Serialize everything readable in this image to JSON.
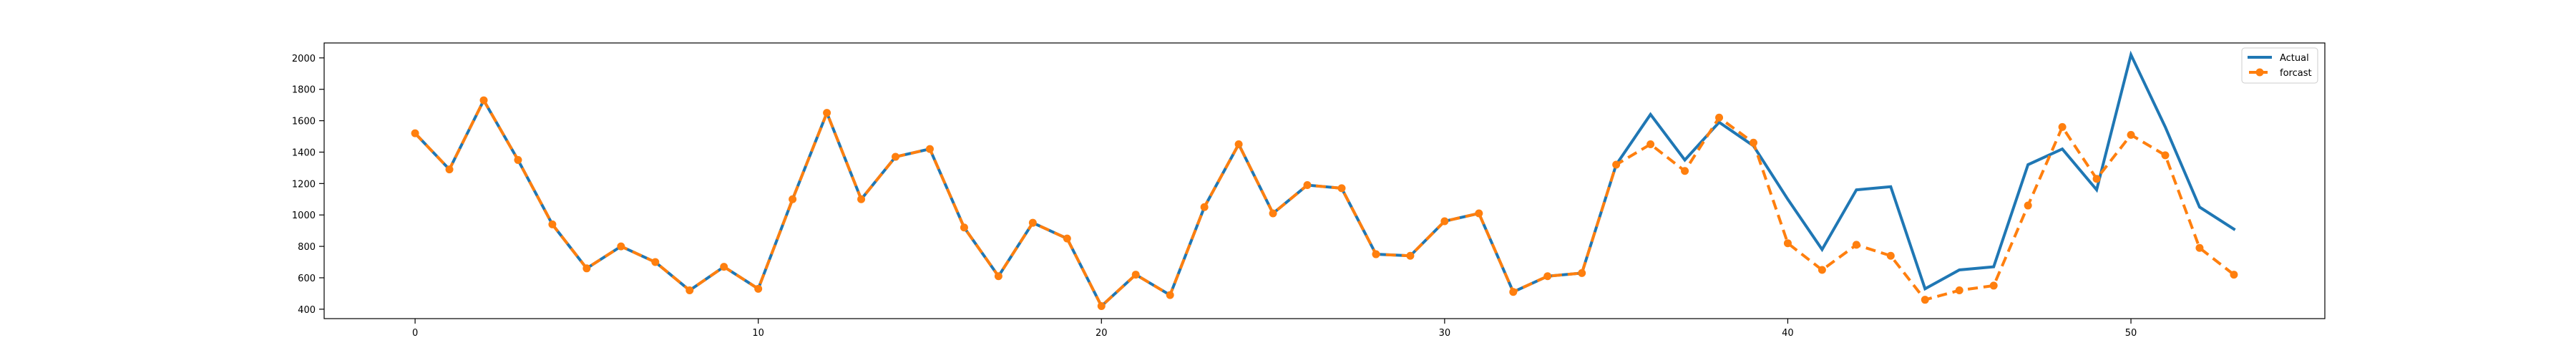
{
  "chart_data": {
    "type": "line",
    "title": "",
    "xlabel": "",
    "ylabel": "",
    "xlim": [
      -2.65,
      55.65
    ],
    "ylim": [
      340,
      2095
    ],
    "x_ticks": [
      0,
      10,
      20,
      30,
      40,
      50
    ],
    "y_ticks": [
      400,
      600,
      800,
      1000,
      1200,
      1400,
      1600,
      1800,
      2000
    ],
    "x_tick_labels": [
      "0",
      "10",
      "20",
      "30",
      "40",
      "50"
    ],
    "y_tick_labels": [
      "400",
      "600",
      "800",
      "1000",
      "1200",
      "1400",
      "1600",
      "1800",
      "2000"
    ],
    "grid": false,
    "legend_position": "top-right",
    "series": [
      {
        "name": "Actual",
        "color": "#1f77b4",
        "style": "solid",
        "marker": "none",
        "x": [
          0,
          1,
          2,
          3,
          4,
          5,
          6,
          7,
          8,
          9,
          10,
          11,
          12,
          13,
          14,
          15,
          16,
          17,
          18,
          19,
          20,
          21,
          22,
          23,
          24,
          25,
          26,
          27,
          28,
          29,
          30,
          31,
          32,
          33,
          34,
          35,
          36,
          37,
          38,
          39,
          40,
          41,
          42,
          43,
          44,
          45,
          46,
          47,
          48,
          49,
          50,
          51,
          52,
          53
        ],
        "y": [
          1520,
          1290,
          1730,
          1350,
          940,
          660,
          800,
          700,
          520,
          670,
          530,
          1100,
          1650,
          1100,
          1370,
          1420,
          920,
          610,
          950,
          850,
          420,
          620,
          490,
          1050,
          1450,
          1010,
          1190,
          1170,
          750,
          740,
          960,
          1010,
          510,
          610,
          630,
          1320,
          1640,
          1350,
          1590,
          1440,
          1100,
          780,
          1160,
          1180,
          530,
          650,
          670,
          1320,
          1420,
          1160,
          2020,
          1560,
          1050,
          910
        ]
      },
      {
        "name": "forcast",
        "color": "#ff7f0e",
        "style": "dashed",
        "marker": "circle",
        "x": [
          0,
          1,
          2,
          3,
          4,
          5,
          6,
          7,
          8,
          9,
          10,
          11,
          12,
          13,
          14,
          15,
          16,
          17,
          18,
          19,
          20,
          21,
          22,
          23,
          24,
          25,
          26,
          27,
          28,
          29,
          30,
          31,
          32,
          33,
          34,
          35,
          36,
          37,
          38,
          39,
          40,
          41,
          42,
          43,
          44,
          45,
          46,
          47,
          48,
          49,
          50,
          51,
          52,
          53
        ],
        "y": [
          1520,
          1290,
          1730,
          1350,
          940,
          660,
          800,
          700,
          520,
          670,
          530,
          1100,
          1650,
          1100,
          1370,
          1420,
          920,
          610,
          950,
          850,
          420,
          620,
          490,
          1050,
          1450,
          1010,
          1190,
          1170,
          750,
          740,
          960,
          1010,
          510,
          610,
          630,
          1320,
          1450,
          1280,
          1620,
          1460,
          820,
          650,
          810,
          740,
          460,
          520,
          550,
          1060,
          1560,
          1230,
          1510,
          1380,
          790,
          620
        ]
      }
    ]
  }
}
